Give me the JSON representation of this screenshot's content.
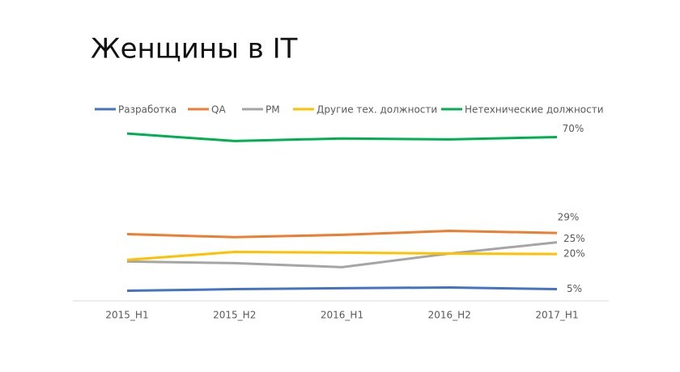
{
  "chart_data": {
    "type": "line",
    "title": "Женщины в IT",
    "categories": [
      "2015_H1",
      "2015_H2",
      "2016_H1",
      "2016_H2",
      "2017_H1"
    ],
    "ylim": [
      0,
      75
    ],
    "series": [
      {
        "name": "Разработка",
        "color": "#4472c4",
        "values": [
          4.3,
          5.0,
          5.4,
          5.7,
          5
        ],
        "value_labels": [
          null,
          null,
          null,
          null,
          "5%"
        ]
      },
      {
        "name": "QA",
        "color": "#ed7d31",
        "values": [
          28.5,
          27.2,
          28.2,
          29.9,
          29
        ],
        "value_labels": [
          null,
          null,
          null,
          null,
          "29%"
        ]
      },
      {
        "name": "PM",
        "color": "#a5a5a5",
        "values": [
          16.8,
          16.1,
          14.4,
          20.2,
          25
        ],
        "value_labels": [
          null,
          null,
          null,
          null,
          "25%"
        ]
      },
      {
        "name": "Другие тех. должности",
        "color": "#ffc000",
        "values": [
          17.5,
          20.9,
          20.6,
          20.2,
          20
        ],
        "value_labels": [
          null,
          null,
          null,
          null,
          "20%"
        ]
      },
      {
        "name": "Нетехнические должности",
        "color": "#00b050",
        "values": [
          71.5,
          68.3,
          69.4,
          69.0,
          70
        ],
        "value_labels": [
          null,
          null,
          null,
          null,
          "70%"
        ]
      }
    ]
  }
}
